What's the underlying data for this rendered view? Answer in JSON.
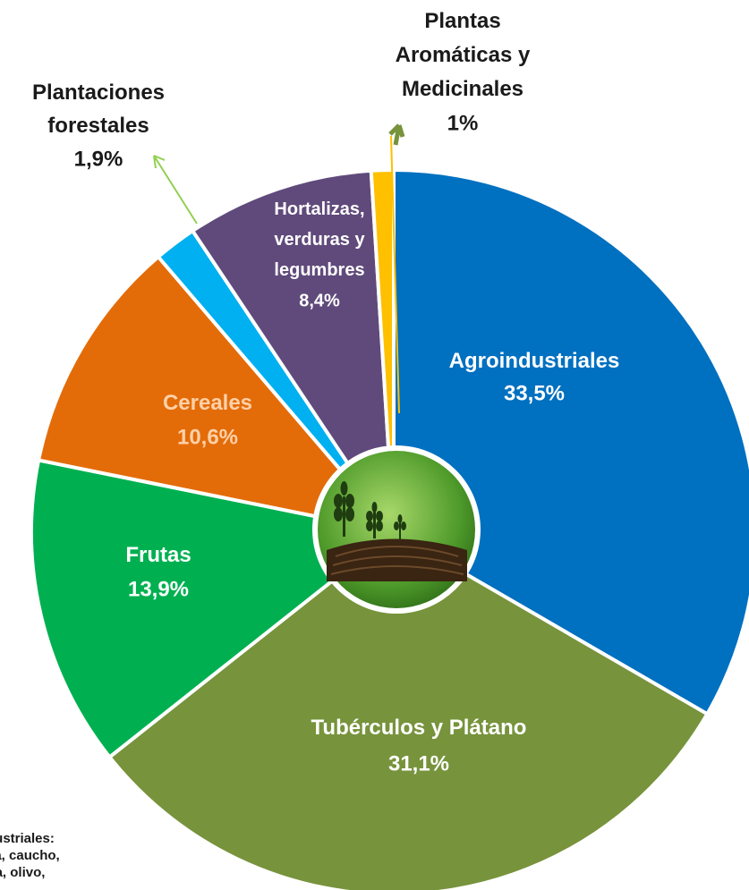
{
  "chart_data": {
    "type": "pie",
    "categories": [
      "Agroindustriales",
      "Tubérculos y Plátano",
      "Frutas",
      "Cereales",
      "Plantaciones forestales",
      "Hortalizas, verduras y legumbres",
      "Plantas Aromáticas y Medicinales"
    ],
    "values": [
      33.5,
      31.1,
      13.9,
      10.6,
      1.9,
      8.4,
      1
    ],
    "value_labels": [
      "33,5%",
      "31,1%",
      "13,9%",
      "10,6%",
      "1,9%",
      "8,4%",
      "1%"
    ],
    "colors": [
      "#0070c0",
      "#77933c",
      "#00b050",
      "#e36c09",
      "#00b0f0",
      "#604a7b",
      "#ffc000"
    ],
    "note_lines": [
      "agroindustriales:",
      "cao, caña, caucho,",
      "guerilla, olivo,"
    ]
  }
}
